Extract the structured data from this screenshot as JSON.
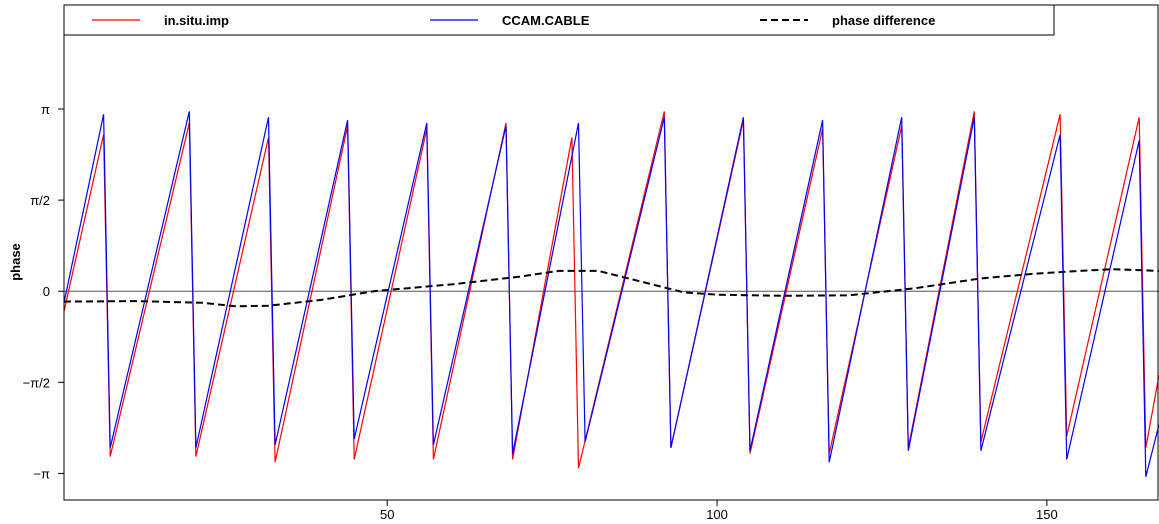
{
  "chart_data": {
    "type": "line",
    "title": "",
    "xlabel": "",
    "ylabel": "phase",
    "xlim": [
      1,
      167
    ],
    "ylim": [
      -3.6,
      4.4
    ],
    "x_ticks": [
      50,
      100,
      150
    ],
    "y_ticks": [
      {
        "value": -3.14159,
        "label": "−π"
      },
      {
        "value": -1.5708,
        "label": "−π/2"
      },
      {
        "value": 0,
        "label": "0"
      },
      {
        "value": 1.5708,
        "label": "π/2"
      },
      {
        "value": 3.14159,
        "label": "π"
      }
    ],
    "zero_line": true,
    "legend_position": "top",
    "series": [
      {
        "name": "in.situ.imp",
        "color": "#ff0000",
        "style": "solid",
        "x": [
          1,
          7,
          8,
          20,
          21,
          32,
          33,
          44,
          45,
          56,
          57,
          68,
          69,
          78,
          79,
          92,
          93,
          104,
          105,
          116,
          117,
          128,
          129,
          139,
          140,
          152,
          153,
          164,
          165,
          167
        ],
        "y": [
          -0.35,
          2.7,
          -2.85,
          2.9,
          -2.85,
          2.65,
          -2.95,
          2.85,
          -2.9,
          2.8,
          -2.9,
          2.9,
          -2.9,
          2.65,
          -3.05,
          3.1,
          -2.7,
          2.95,
          -2.8,
          2.8,
          -2.8,
          2.85,
          -2.7,
          3.1,
          -2.6,
          3.05,
          -2.5,
          3.0,
          -2.7,
          -1.45
        ]
      },
      {
        "name": "CCAM.CABLE",
        "color": "#0000ff",
        "style": "solid",
        "x": [
          1,
          7,
          8,
          20,
          21,
          32,
          33,
          44,
          45,
          56,
          57,
          68,
          69,
          79,
          80,
          92,
          93,
          104,
          105,
          116,
          117,
          128,
          129,
          139,
          140,
          152,
          153,
          164,
          165,
          167
        ],
        "y": [
          -0.2,
          3.05,
          -2.7,
          3.1,
          -2.7,
          3.0,
          -2.65,
          2.95,
          -2.55,
          2.9,
          -2.65,
          2.85,
          -2.8,
          2.9,
          -2.6,
          3.0,
          -2.7,
          3.0,
          -2.75,
          2.95,
          -2.95,
          3.0,
          -2.75,
          3.0,
          -2.75,
          2.7,
          -2.9,
          2.6,
          -3.2,
          -2.3
        ]
      },
      {
        "name": "phase difference",
        "color": "#000000",
        "style": "dashed",
        "x": [
          1,
          12,
          22,
          27,
          32,
          40,
          48,
          60,
          70,
          76,
          82,
          88,
          95,
          100,
          110,
          120,
          130,
          140,
          148,
          155,
          160,
          167
        ],
        "y": [
          -0.18,
          -0.17,
          -0.2,
          -0.26,
          -0.25,
          -0.15,
          0.0,
          0.12,
          0.25,
          0.35,
          0.35,
          0.18,
          -0.02,
          -0.06,
          -0.08,
          -0.07,
          0.05,
          0.22,
          0.3,
          0.35,
          0.38,
          0.35
        ]
      }
    ]
  }
}
